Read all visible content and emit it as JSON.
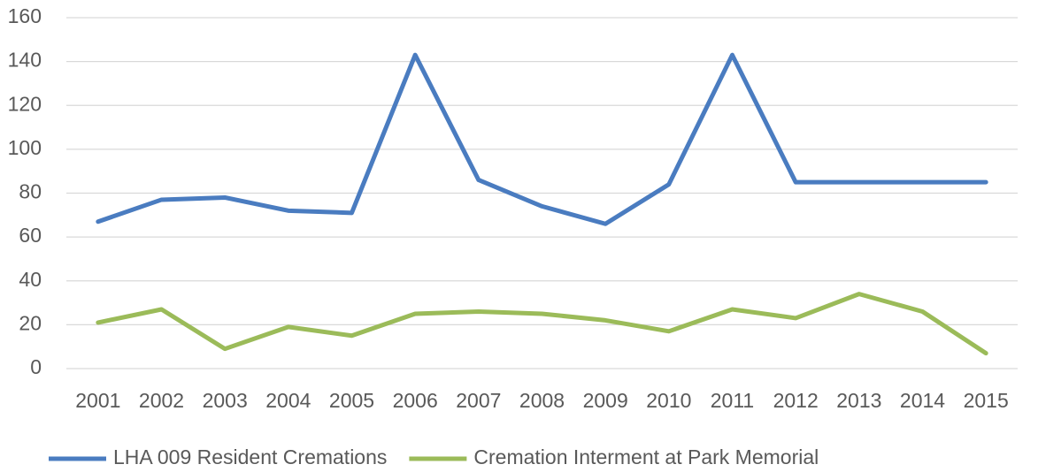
{
  "chart_data": {
    "type": "line",
    "categories": [
      "2001",
      "2002",
      "2003",
      "2004",
      "2005",
      "2006",
      "2007",
      "2008",
      "2009",
      "2010",
      "2011",
      "2012",
      "2013",
      "2014",
      "2015"
    ],
    "series": [
      {
        "name": "LHA 009 Resident Cremations",
        "color": "#4a7cc0",
        "values": [
          67,
          77,
          78,
          72,
          71,
          143,
          86,
          74,
          66,
          84,
          143,
          85,
          85,
          85,
          85
        ]
      },
      {
        "name": "Cremation Interment at Park Memorial",
        "color": "#9bbb59",
        "values": [
          21,
          27,
          9,
          19,
          15,
          25,
          26,
          25,
          22,
          17,
          27,
          23,
          34,
          26,
          7
        ]
      }
    ],
    "ylim": [
      0,
      160
    ],
    "yticks": [
      0,
      20,
      40,
      60,
      80,
      100,
      120,
      140,
      160
    ],
    "grid": true,
    "legend": "bottom"
  }
}
